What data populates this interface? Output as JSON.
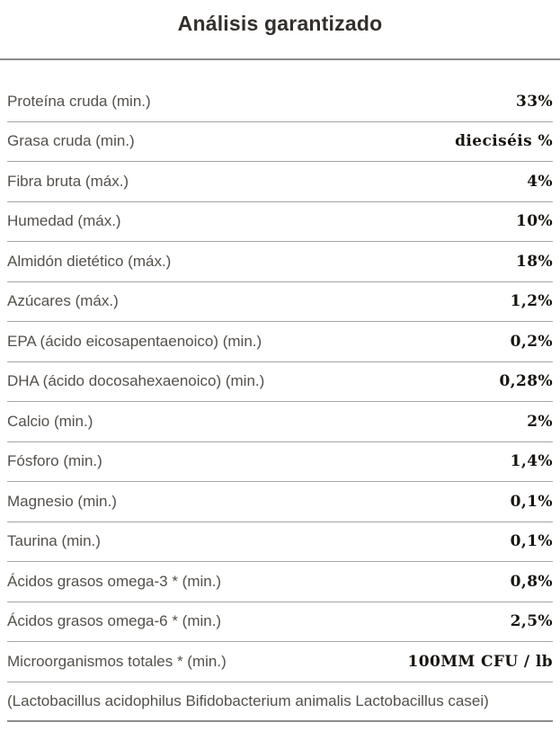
{
  "header": {
    "title": "Análisis garantizado"
  },
  "table": {
    "rows": [
      {
        "label": "Proteína cruda (min.)",
        "value": "33%"
      },
      {
        "label": "Grasa cruda (min.)",
        "value": "dieciséis %"
      },
      {
        "label": "Fibra bruta (máx.)",
        "value": "4%"
      },
      {
        "label": "Humedad (máx.)",
        "value": "10%"
      },
      {
        "label": "Almidón dietético (máx.)",
        "value": "18%"
      },
      {
        "label": "Azúcares (máx.)",
        "value": "1,2%"
      },
      {
        "label": "EPA (ácido eicosapentaenoico) (min.)",
        "value": "0,2%"
      },
      {
        "label": "DHA (ácido docosahexaenoico) (min.)",
        "value": "0,28%"
      },
      {
        "label": "Calcio (min.)",
        "value": "2%"
      },
      {
        "label": "Fósforo (min.)",
        "value": "1,4%"
      },
      {
        "label": "Magnesio (min.)",
        "value": "0,1%"
      },
      {
        "label": "Taurina (min.)",
        "value": "0,1%"
      },
      {
        "label": "Ácidos grasos omega-3 * (min.)",
        "value": "0,8%"
      },
      {
        "label": "Ácidos grasos omega-6 * (min.)",
        "value": "2,5%"
      },
      {
        "label": "Microorganismos totales * (min.)",
        "value": "100MM CFU / lb"
      }
    ],
    "note": "(Lactobacillus acidophilus Bifidobacterium animalis Lactobacillus casei)"
  },
  "colors": {
    "title_text": "#332f2b",
    "label_text": "#54504b",
    "value_text": "#17140f",
    "row_divider": "#a7a5a3",
    "strong_divider": "#8e8c8a",
    "background": "#ffffff"
  }
}
